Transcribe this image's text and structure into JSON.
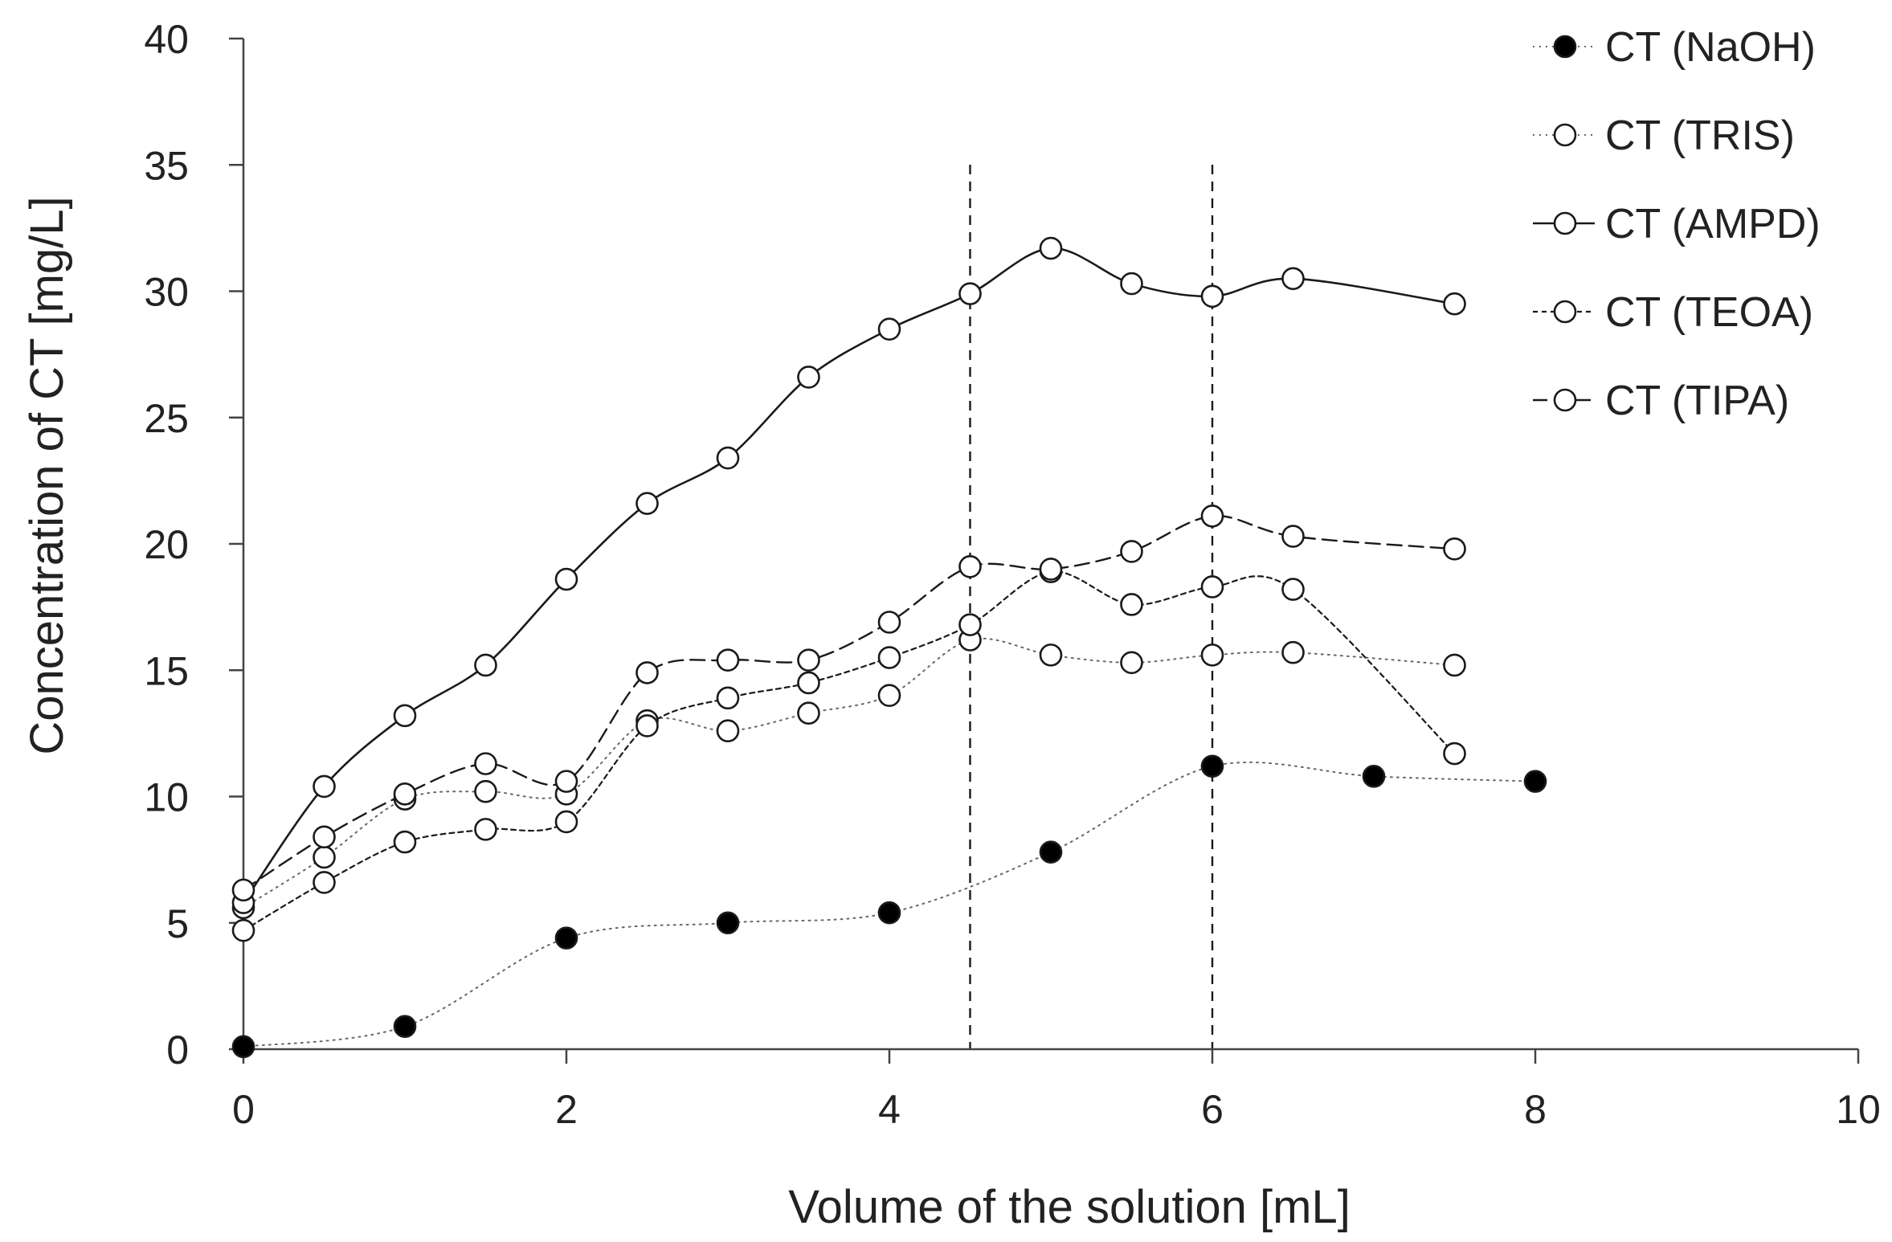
{
  "chart_data": {
    "type": "line",
    "xlabel": "Volume of the solution [mL]",
    "ylabel": "Concentration of CT [mg/L]",
    "xlim": [
      0,
      10
    ],
    "ylim": [
      0,
      40
    ],
    "x_ticks": [
      0,
      2,
      4,
      6,
      8,
      10
    ],
    "y_ticks": [
      0,
      5,
      10,
      15,
      20,
      25,
      30,
      35,
      40
    ],
    "grid": false,
    "legend_position": "top-right",
    "reference_lines_x": [
      4.5,
      6
    ],
    "series": [
      {
        "name": "CT (NaOH)",
        "marker": "filled-circle",
        "line": "dotted",
        "x": [
          0,
          1,
          2,
          3,
          4,
          5,
          6,
          7,
          8
        ],
        "y": [
          0.1,
          0.9,
          4.4,
          5.0,
          5.4,
          7.8,
          11.2,
          10.8,
          10.6
        ]
      },
      {
        "name": "CT (TRIS)",
        "marker": "open-circle",
        "line": "dotted",
        "x": [
          0,
          0.5,
          1,
          1.5,
          2,
          2.5,
          3,
          3.5,
          4,
          4.5,
          5,
          5.5,
          6,
          6.5,
          7.5
        ],
        "y": [
          5.6,
          7.6,
          9.9,
          10.2,
          10.1,
          13.0,
          12.6,
          13.3,
          14.0,
          16.2,
          15.6,
          15.3,
          15.6,
          15.7,
          15.2
        ]
      },
      {
        "name": "CT (AMPD)",
        "marker": "open-circle",
        "line": "solid",
        "x": [
          0,
          0.5,
          1,
          1.5,
          2,
          2.5,
          3,
          3.5,
          4,
          4.5,
          5,
          5.5,
          6,
          6.5,
          7.5
        ],
        "y": [
          5.8,
          10.4,
          13.2,
          15.2,
          18.6,
          21.6,
          23.4,
          26.6,
          28.5,
          29.9,
          31.7,
          30.3,
          29.8,
          30.5,
          29.5
        ]
      },
      {
        "name": "CT (TEOA)",
        "marker": "open-circle",
        "line": "short-dash",
        "x": [
          0,
          0.5,
          1,
          1.5,
          2,
          2.5,
          3,
          3.5,
          4,
          4.5,
          5,
          5.5,
          6,
          6.5,
          7.5
        ],
        "y": [
          4.7,
          6.6,
          8.2,
          8.7,
          9.0,
          12.8,
          13.9,
          14.5,
          15.5,
          16.8,
          18.9,
          17.6,
          18.3,
          18.2,
          11.7
        ]
      },
      {
        "name": "CT (TIPA)",
        "marker": "open-circle",
        "line": "long-dash",
        "x": [
          0,
          0.5,
          1,
          1.5,
          2,
          2.5,
          3,
          3.5,
          4,
          4.5,
          5,
          5.5,
          6,
          6.5,
          7.5
        ],
        "y": [
          6.3,
          8.4,
          10.1,
          11.3,
          10.6,
          14.9,
          15.4,
          15.4,
          16.9,
          19.1,
          19.0,
          19.7,
          21.1,
          20.3,
          19.8
        ]
      }
    ]
  },
  "colors": {
    "ink": "#1a1a1a",
    "axis": "#444444",
    "marker_fill_open": "#ffffff",
    "marker_fill_filled": "#000000"
  }
}
